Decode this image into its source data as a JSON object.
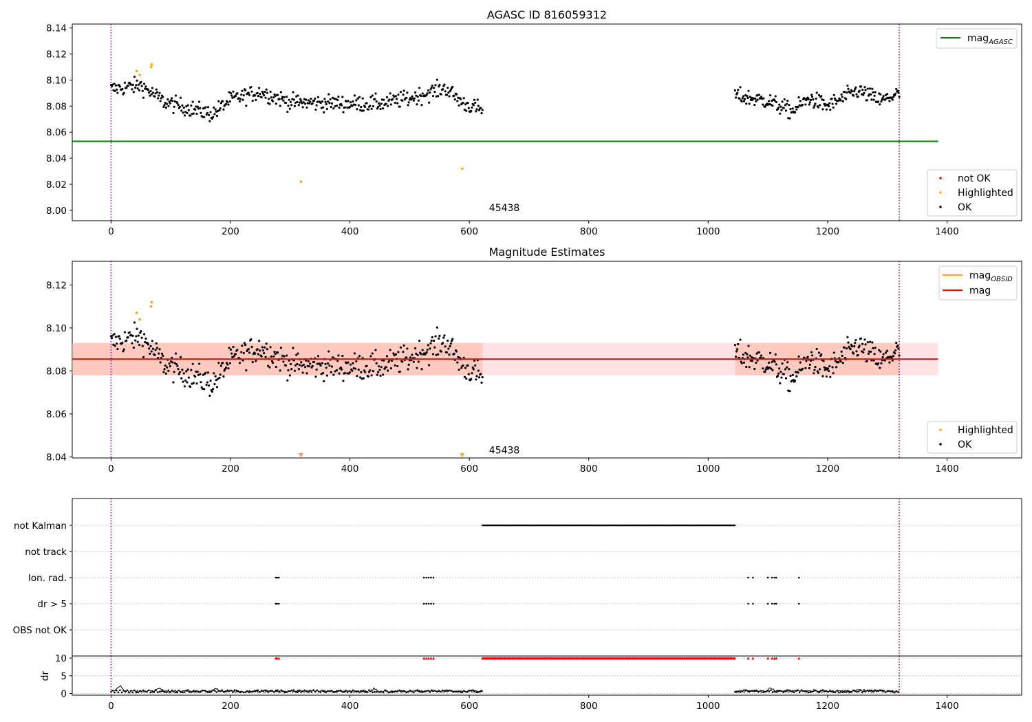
{
  "colors": {
    "ok": "#000000",
    "highlighted": "#ffa500",
    "not_ok": "#ff0000",
    "mag_agasc_line": "#008000",
    "mag_line": "#ff0000",
    "mag_obsid_line": "#ffa500",
    "band_fill": "#ffb6c1",
    "band_fill_obsid": "#ffa07a",
    "obs_boundary": "#800080"
  },
  "chart_data": [
    {
      "type": "scatter",
      "title": "AGASC ID 816059312",
      "xlim": [
        -65,
        1525
      ],
      "ylim": [
        7.992,
        8.143
      ],
      "xticks": [
        0,
        200,
        400,
        600,
        800,
        1000,
        1200,
        1400
      ],
      "yticks": [
        8.0,
        8.02,
        8.04,
        8.06,
        8.08,
        8.1,
        8.12,
        8.14
      ],
      "ytick_labels": [
        "8.00",
        "8.02",
        "8.04",
        "8.06",
        "8.08",
        "8.10",
        "8.12",
        "8.14"
      ],
      "obs_boundaries": [
        0,
        1320
      ],
      "obsid_label": {
        "text": "45438",
        "x": 633,
        "y": 7.9995
      },
      "hlines": [
        {
          "name": "mag_AGASC",
          "y": 8.053,
          "x_range": [
            -65,
            1385
          ]
        }
      ],
      "legend_lines": [
        {
          "name": "mag",
          "sub": "AGASC",
          "color_key": "mag_agasc_line"
        }
      ],
      "legend_points": [
        {
          "name": "not OK",
          "color_key": "not_ok"
        },
        {
          "name": "Highlighted",
          "color_key": "highlighted"
        },
        {
          "name": "OK",
          "color_key": "ok"
        }
      ],
      "highlighted_points": [
        [
          43,
          8.107
        ],
        [
          48,
          8.104
        ],
        [
          67,
          8.11
        ],
        [
          68,
          8.112
        ],
        [
          318,
          8.022
        ],
        [
          588,
          8.032
        ]
      ],
      "ok_segments": [
        {
          "x_start": 0,
          "x_end": 622,
          "n": 460,
          "amplitude": 0.0075,
          "trend": [
            [
              0,
              8.093
            ],
            [
              50,
              8.096
            ],
            [
              90,
              8.083
            ],
            [
              170,
              8.074
            ],
            [
              200,
              8.085
            ],
            [
              250,
              8.091
            ],
            [
              300,
              8.083
            ],
            [
              400,
              8.082
            ],
            [
              450,
              8.082
            ],
            [
              500,
              8.086
            ],
            [
              560,
              8.094
            ],
            [
              590,
              8.082
            ],
            [
              622,
              8.077
            ]
          ]
        },
        {
          "x_start": 1045,
          "x_end": 1320,
          "n": 220,
          "amplitude": 0.0075,
          "trend": [
            [
              1045,
              8.088
            ],
            [
              1100,
              8.084
            ],
            [
              1140,
              8.076
            ],
            [
              1170,
              8.086
            ],
            [
              1200,
              8.08
            ],
            [
              1250,
              8.092
            ],
            [
              1290,
              8.084
            ],
            [
              1320,
              8.09
            ]
          ]
        }
      ]
    },
    {
      "type": "scatter",
      "title": "Magnitude Estimates",
      "xlim": [
        -65,
        1525
      ],
      "ylim": [
        8.0395,
        8.131
      ],
      "xticks": [
        0,
        200,
        400,
        600,
        800,
        1000,
        1200,
        1400
      ],
      "yticks": [
        8.04,
        8.06,
        8.08,
        8.1,
        8.12
      ],
      "ytick_labels": [
        "8.04",
        "8.06",
        "8.08",
        "8.10",
        "8.12"
      ],
      "obs_boundaries": [
        0,
        1320
      ],
      "obsid_label": {
        "text": "45438",
        "x": 633,
        "y": 8.0415
      },
      "mag": 8.0855,
      "mag_band": [
        8.078,
        8.093
      ],
      "mag_obsid_band": {
        "x_range": [
          -65,
          622
        ],
        "y_range": [
          8.078,
          8.093
        ]
      },
      "mag_obsid_band_2": {
        "x_range": [
          1045,
          1320
        ],
        "y_range": [
          8.078,
          8.093
        ]
      },
      "x_end": 1385,
      "legend_lines": [
        {
          "name": "mag",
          "sub": "OBSID",
          "color_key": "mag_obsid_line"
        },
        {
          "name": "mag",
          "sub": "",
          "color_key": "mag_line"
        }
      ],
      "legend_points": [
        {
          "name": "Highlighted",
          "color_key": "highlighted"
        },
        {
          "name": "OK",
          "color_key": "ok"
        }
      ],
      "highlighted_points": [
        [
          43,
          8.107
        ],
        [
          48,
          8.104
        ],
        [
          67,
          8.11
        ],
        [
          68,
          8.112
        ]
      ],
      "offscale_markers": [
        318,
        588
      ]
    },
    {
      "type": "scatter",
      "title": "",
      "xlim": [
        -65,
        1525
      ],
      "xticks": [
        0,
        200,
        400,
        600,
        800,
        1000,
        1200,
        1400
      ],
      "categories": [
        "not Kalman",
        "not track",
        "Ion. rad.",
        "dr > 5",
        "OBS not OK"
      ],
      "obs_boundaries": [
        0,
        1320
      ],
      "flags": {
        "not Kalman": {
          "ranges": [
            [
              622,
              1045
            ]
          ],
          "points": []
        },
        "not track": {
          "ranges": [],
          "points": []
        },
        "Ion. rad.": {
          "ranges": [],
          "points": [
            276,
            278,
            281,
            524,
            528,
            532,
            536,
            540,
            1067,
            1075,
            1100,
            1107,
            1111,
            1114,
            1152
          ]
        },
        "dr > 5": {
          "ranges": [],
          "points": [
            276,
            278,
            281,
            524,
            528,
            532,
            536,
            540,
            1067,
            1075,
            1100,
            1107,
            1111,
            1114,
            1152
          ]
        },
        "OBS not OK": {
          "ranges": [],
          "points": []
        }
      }
    },
    {
      "type": "line",
      "title": "",
      "ylabel": "dr",
      "xlim": [
        -65,
        1525
      ],
      "ylim": [
        -0.5,
        10.6
      ],
      "xticks": [
        0,
        200,
        400,
        600,
        800,
        1000,
        1200,
        1400
      ],
      "xtick_labels": [
        "0",
        "200",
        "400",
        "600",
        "800",
        "1000",
        "1200",
        "1400"
      ],
      "yticks": [
        0,
        5,
        10
      ],
      "ytick_labels": [
        "0",
        "5",
        "10"
      ],
      "obs_boundaries": [
        0,
        1320
      ],
      "segments": [
        [
          0,
          622
        ],
        [
          1045,
          1320
        ]
      ],
      "baseline": 0.6,
      "spikes": [
        [
          15,
          2.2
        ],
        [
          80,
          1.5
        ],
        [
          175,
          1.4
        ],
        [
          440,
          1.3
        ],
        [
          1105,
          1.6
        ],
        [
          1250,
          1.2
        ]
      ],
      "clipped_value": 10,
      "clipped_points": [
        276,
        278,
        281,
        524,
        528,
        532,
        536,
        540,
        1067,
        1075,
        1100,
        1107,
        1111,
        1114,
        1152
      ],
      "clipped_ranges": [
        [
          622,
          1045
        ]
      ]
    }
  ]
}
